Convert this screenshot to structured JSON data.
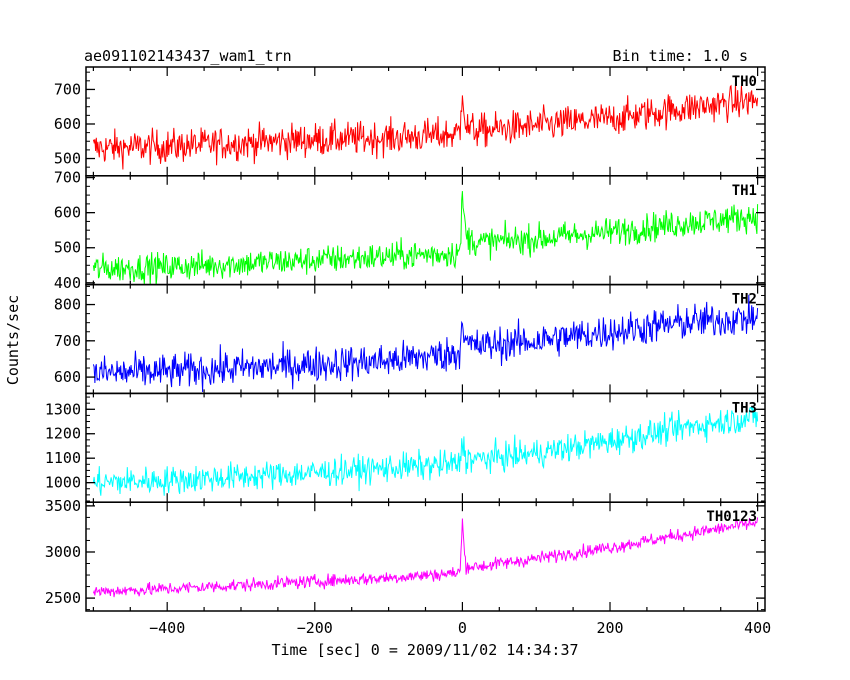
{
  "header": {
    "title": "ae091102143437_wam1_trn",
    "bin_time": "Bin time: 1.0 s"
  },
  "chart_data": {
    "type": "line",
    "title": "ae091102143437_wam1_trn",
    "xlabel": "Time [sec] 0 = 2009/11/02 14:34:37",
    "ylabel": "Counts/sec",
    "xlim": [
      -510,
      410
    ],
    "x_ticks": [
      -400,
      -200,
      0,
      200,
      400
    ],
    "x_tick_labels": [
      "−400",
      "−200",
      "0",
      "200",
      "400"
    ],
    "grid": false,
    "legend": "none",
    "panels": [
      {
        "name": "TH0",
        "color": "#ff0000",
        "ylim": [
          450,
          765
        ],
        "yticks": [
          500,
          600,
          700
        ],
        "series_x": [
          -500,
          -400,
          -300,
          -200,
          -100,
          -10,
          -3,
          0,
          2,
          5,
          20,
          100,
          200,
          300,
          400
        ],
        "series_y": [
          530,
          535,
          545,
          555,
          560,
          570,
          580,
          720,
          650,
          590,
          580,
          595,
          615,
          645,
          670
        ],
        "noise": 38
      },
      {
        "name": "TH1",
        "color": "#00ff00",
        "ylim": [
          395,
          705
        ],
        "yticks": [
          400,
          500,
          600,
          700
        ],
        "series_x": [
          -500,
          -400,
          -300,
          -200,
          -100,
          -10,
          -3,
          0,
          2,
          5,
          20,
          100,
          200,
          300,
          400
        ],
        "series_y": [
          440,
          445,
          455,
          465,
          475,
          485,
          490,
          650,
          600,
          530,
          515,
          525,
          545,
          570,
          590
        ],
        "noise": 32
      },
      {
        "name": "TH2",
        "color": "#0000ff",
        "ylim": [
          555,
          855
        ],
        "yticks": [
          600,
          700,
          800
        ],
        "series_x": [
          -500,
          -400,
          -300,
          -200,
          -100,
          -10,
          -3,
          0,
          2,
          5,
          20,
          100,
          200,
          300,
          400
        ],
        "series_y": [
          610,
          615,
          625,
          635,
          645,
          665,
          670,
          790,
          720,
          690,
          685,
          700,
          725,
          750,
          765
        ],
        "noise": 38
      },
      {
        "name": "TH3",
        "color": "#00ffff",
        "ylim": [
          920,
          1365
        ],
        "yticks": [
          1000,
          1100,
          1200,
          1300
        ],
        "series_x": [
          -500,
          -400,
          -300,
          -200,
          -100,
          -10,
          -3,
          0,
          2,
          5,
          20,
          100,
          200,
          300,
          400
        ],
        "series_y": [
          1000,
          1010,
          1025,
          1040,
          1060,
          1075,
          1080,
          1180,
          1140,
          1100,
          1095,
          1120,
          1170,
          1225,
          1270
        ],
        "noise": 45
      },
      {
        "name": "TH0123",
        "color": "#ff00ff",
        "ylim": [
          2360,
          3540
        ],
        "yticks": [
          2500,
          3000,
          3500
        ],
        "series_x": [
          -500,
          -400,
          -300,
          -200,
          -100,
          -10,
          -3,
          0,
          2,
          5,
          20,
          100,
          200,
          300,
          400
        ],
        "series_y": [
          2570,
          2600,
          2640,
          2680,
          2720,
          2770,
          2790,
          3360,
          3050,
          2850,
          2840,
          2930,
          3050,
          3190,
          3320
        ],
        "noise": 55
      }
    ]
  }
}
